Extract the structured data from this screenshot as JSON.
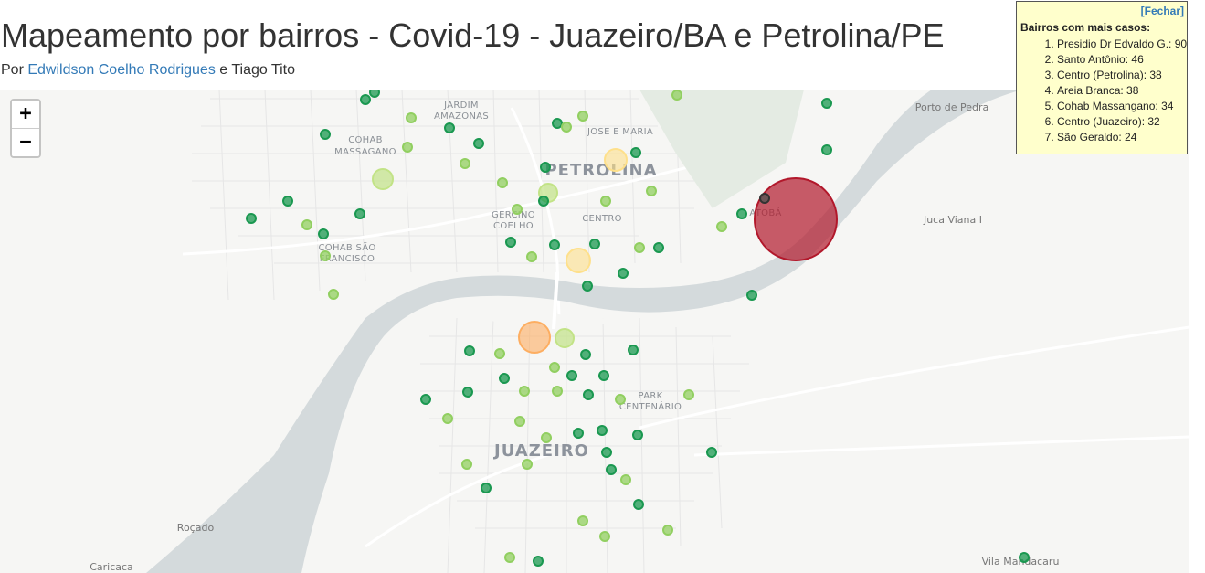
{
  "header": {
    "title": "Mapeamento por bairros - Covid-19 - Juazeiro/BA e Petrolina/PE",
    "by_prefix": "Por",
    "author_link": "Edwildson Coelho Rodrigues",
    "by_and": "e",
    "coauthor": "Tiago Tito"
  },
  "zoom": {
    "in_label": "+",
    "out_label": "−"
  },
  "info_panel": {
    "close_label": "[Fechar]",
    "heading": "Bairros com mais casos:",
    "items": [
      "Presidio Dr Edvaldo G.: 90",
      "Santo Antônio: 46",
      "Centro (Petrolina): 38",
      "Areia Branca: 38",
      "Cohab Massangano: 34",
      "Centro (Juazeiro): 32",
      "São Geraldo: 24"
    ]
  },
  "map_labels": {
    "jardim_amazonas_1": "JARDIM",
    "jardim_amazonas_2": "AMAZONAS",
    "jose_e_maria": "JOSE E MARIA",
    "cohab_massagano_1": "COHAB",
    "cohab_massagano_2": "MASSAGANO",
    "petrolina": "PETROLINA",
    "gercino_coelho_1": "GERCINO",
    "gercino_coelho_2": "COELHO",
    "centro": "CENTRO",
    "atoba": "ATOBÁ",
    "cohab_sao_francisco_1": "COHAB SÃO",
    "cohab_sao_francisco_2": "FRANCISCO",
    "park_centenario_1": "PARK",
    "park_centenario_2": "CENTENÁRIO",
    "juazeiro": "JUAZEIRO",
    "porto_de_pedra": "Porto de Pedra",
    "juca_viana": "Juca Viana I",
    "rocado": "Roçado",
    "caricaca": "Caricaca",
    "vila_mandacaru": "Vila Mandacaru"
  },
  "colors": {
    "water": "#d4dadc",
    "land": "#f6f6f4",
    "green_dark": "#1a9850",
    "green_light": "#91cf60",
    "yellow": "#fee08b",
    "orange": "#fdae61",
    "red": "#b2182b"
  }
}
